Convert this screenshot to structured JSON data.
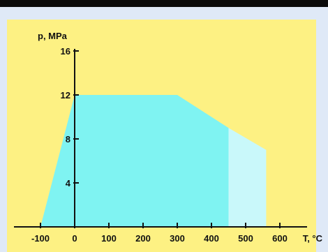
{
  "chart_data": {
    "type": "area",
    "ylabel": "p, MPa",
    "xlabel": "T, °C",
    "xlim": [
      -100,
      600
    ],
    "ylim": [
      0,
      16
    ],
    "xticks": [
      -100,
      0,
      100,
      200,
      300,
      400,
      500,
      600
    ],
    "yticks": [
      4,
      8,
      12,
      16
    ],
    "xtick_labels": [
      "-100",
      "0",
      "100",
      "200",
      "300",
      "400",
      "500",
      "600"
    ],
    "ytick_labels": [
      "4",
      "8",
      "12",
      "16"
    ],
    "grid": false,
    "series": [
      {
        "color": "#7ff3f2",
        "points": [
          [
            -100,
            0
          ],
          [
            0,
            12
          ],
          [
            300,
            12
          ],
          [
            450,
            9
          ],
          [
            450,
            0
          ]
        ]
      },
      {
        "color": "#c9f8fa",
        "points": [
          [
            450,
            0
          ],
          [
            450,
            9
          ],
          [
            560,
            7
          ],
          [
            560,
            0
          ]
        ]
      }
    ],
    "colors": {
      "plot_background": "#fdf183",
      "page_background": "#dfe9f7"
    }
  }
}
